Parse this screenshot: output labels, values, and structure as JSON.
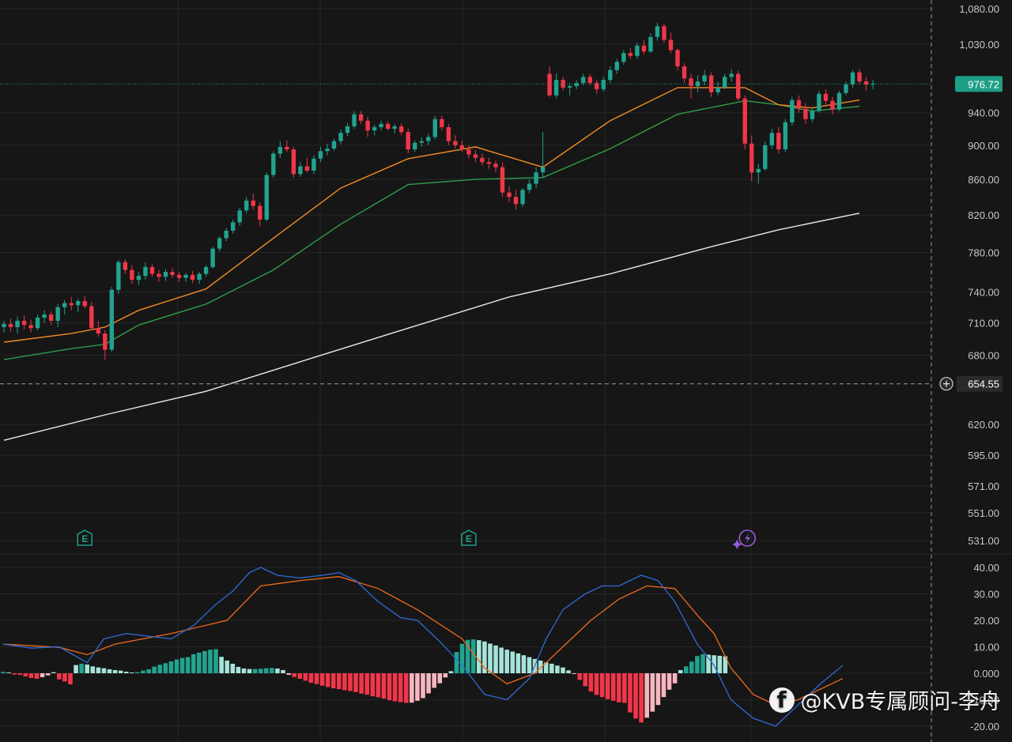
{
  "colors": {
    "background": "#161616",
    "grid": "#262626",
    "up": "#22a38f",
    "down": "#f2364a",
    "ma_orange": "#f28b22",
    "ma_green": "#2e9e4a",
    "ma_white": "#e9e9e9",
    "macd_blue": "#2f6bd6",
    "macd_orange": "#f06a1c",
    "hist_up_strong": "#22a38f",
    "hist_up_weak": "#a6e3d8",
    "hist_down_strong": "#f2364a",
    "hist_down_weak": "#f7b6c0",
    "price_tag": "#1f9e86",
    "crosshair_tag": "#2a2a2a",
    "earnings_icon": "#1f9e86",
    "flash_icon": "#9b59e0"
  },
  "price_axis_labels": [
    "1,080.00",
    "1,030.00",
    "976.72",
    "940.00",
    "900.00",
    "860.00",
    "820.00",
    "780.00",
    "740.00",
    "710.00",
    "680.00",
    "654.55",
    "620.00",
    "595.00",
    "571.00",
    "551.00",
    "531.00"
  ],
  "macd_axis_labels": [
    "40.00",
    "30.00",
    "20.00",
    "10.00",
    "0.000",
    "-10.00",
    "-20.00"
  ],
  "last_price": {
    "value": 976.72,
    "label": "976.72"
  },
  "crosshair": {
    "value": 654.55,
    "label": "654.55",
    "icon": "plus-circle-icon"
  },
  "markers": [
    {
      "type": "earnings",
      "label": "E",
      "icon": "earnings-icon",
      "bar_index": 12
    },
    {
      "type": "earnings",
      "label": "E",
      "icon": "earnings-icon",
      "bar_index": 69
    },
    {
      "type": "event",
      "label": "",
      "icon": "flash-icon",
      "bar_index": 110
    }
  ],
  "watermark": {
    "icon": "facebook-icon",
    "text": "@KVB专属顾问-李舟"
  },
  "chart_data": {
    "type": "candlestick",
    "price_scale": "log",
    "ylim": [
      531,
      1080
    ],
    "candles": [
      [
        706,
        712,
        701,
        709
      ],
      [
        709,
        714,
        702,
        706
      ],
      [
        706,
        716,
        700,
        712
      ],
      [
        712,
        717,
        704,
        708
      ],
      [
        708,
        713,
        701,
        705
      ],
      [
        705,
        718,
        703,
        715
      ],
      [
        715,
        722,
        710,
        718
      ],
      [
        718,
        721,
        708,
        712
      ],
      [
        712,
        728,
        706,
        725
      ],
      [
        725,
        732,
        718,
        729
      ],
      [
        729,
        735,
        722,
        727
      ],
      [
        727,
        733,
        720,
        731
      ],
      [
        731,
        736,
        724,
        726
      ],
      [
        726,
        730,
        703,
        705
      ],
      [
        705,
        712,
        697,
        700
      ],
      [
        700,
        703,
        676,
        685
      ],
      [
        685,
        745,
        683,
        742
      ],
      [
        742,
        772,
        738,
        770
      ],
      [
        770,
        773,
        758,
        762
      ],
      [
        762,
        767,
        748,
        752
      ],
      [
        752,
        760,
        747,
        756
      ],
      [
        756,
        770,
        752,
        765
      ],
      [
        765,
        768,
        755,
        758
      ],
      [
        758,
        762,
        750,
        755
      ],
      [
        755,
        763,
        751,
        760
      ],
      [
        760,
        764,
        754,
        757
      ],
      [
        757,
        760,
        750,
        754
      ],
      [
        754,
        759,
        750,
        757
      ],
      [
        757,
        761,
        749,
        752
      ],
      [
        752,
        760,
        748,
        758
      ],
      [
        758,
        767,
        755,
        765
      ],
      [
        765,
        786,
        763,
        784
      ],
      [
        784,
        797,
        781,
        795
      ],
      [
        795,
        806,
        792,
        803
      ],
      [
        803,
        815,
        800,
        812
      ],
      [
        812,
        828,
        808,
        825
      ],
      [
        825,
        840,
        822,
        836
      ],
      [
        836,
        844,
        826,
        830
      ],
      [
        830,
        834,
        808,
        815
      ],
      [
        815,
        868,
        813,
        865
      ],
      [
        865,
        893,
        862,
        890
      ],
      [
        890,
        905,
        885,
        898
      ],
      [
        898,
        906,
        892,
        895
      ],
      [
        895,
        898,
        862,
        866
      ],
      [
        866,
        880,
        863,
        875
      ],
      [
        875,
        885,
        868,
        870
      ],
      [
        870,
        888,
        866,
        884
      ],
      [
        884,
        898,
        880,
        893
      ],
      [
        893,
        902,
        888,
        896
      ],
      [
        896,
        908,
        893,
        905
      ],
      [
        905,
        919,
        901,
        915
      ],
      [
        915,
        927,
        911,
        923
      ],
      [
        923,
        942,
        920,
        938
      ],
      [
        938,
        942,
        926,
        930
      ],
      [
        930,
        935,
        910,
        918
      ],
      [
        918,
        925,
        912,
        922
      ],
      [
        922,
        930,
        918,
        926
      ],
      [
        926,
        929,
        918,
        920
      ],
      [
        920,
        926,
        914,
        923
      ],
      [
        923,
        927,
        912,
        916
      ],
      [
        916,
        920,
        890,
        895
      ],
      [
        895,
        906,
        892,
        903
      ],
      [
        903,
        910,
        898,
        905
      ],
      [
        905,
        914,
        900,
        910
      ],
      [
        910,
        936,
        907,
        932
      ],
      [
        932,
        936,
        918,
        922
      ],
      [
        922,
        926,
        900,
        905
      ],
      [
        905,
        912,
        896,
        900
      ],
      [
        900,
        906,
        892,
        895
      ],
      [
        895,
        900,
        884,
        889
      ],
      [
        889,
        894,
        880,
        885
      ],
      [
        885,
        890,
        876,
        880
      ],
      [
        880,
        885,
        872,
        878
      ],
      [
        878,
        882,
        868,
        874
      ],
      [
        874,
        880,
        840,
        845
      ],
      [
        845,
        852,
        834,
        840
      ],
      [
        840,
        848,
        826,
        832
      ],
      [
        832,
        850,
        829,
        848
      ],
      [
        848,
        860,
        844,
        855
      ],
      [
        855,
        874,
        850,
        868
      ],
      [
        868,
        916,
        862,
        874
      ],
      [
        990,
        1000,
        960,
        962
      ],
      [
        962,
        990,
        958,
        982
      ],
      [
        982,
        986,
        968,
        972
      ],
      [
        972,
        978,
        962,
        974
      ],
      [
        974,
        982,
        970,
        978
      ],
      [
        978,
        990,
        975,
        986
      ],
      [
        986,
        990,
        975,
        978
      ],
      [
        978,
        982,
        964,
        970
      ],
      [
        970,
        986,
        967,
        982
      ],
      [
        982,
        1000,
        978,
        995
      ],
      [
        995,
        1010,
        990,
        1006
      ],
      [
        1006,
        1022,
        1002,
        1018
      ],
      [
        1018,
        1025,
        1010,
        1014
      ],
      [
        1014,
        1032,
        1010,
        1028
      ],
      [
        1028,
        1036,
        1016,
        1020
      ],
      [
        1020,
        1045,
        1018,
        1040
      ],
      [
        1040,
        1060,
        1035,
        1055
      ],
      [
        1055,
        1058,
        1032,
        1036
      ],
      [
        1036,
        1046,
        1018,
        1022
      ],
      [
        1022,
        1024,
        995,
        1000
      ],
      [
        1000,
        1004,
        978,
        984
      ],
      [
        984,
        990,
        958,
        974
      ],
      [
        974,
        988,
        966,
        980
      ],
      [
        980,
        995,
        975,
        988
      ],
      [
        988,
        992,
        960,
        966
      ],
      [
        966,
        980,
        962,
        972
      ],
      [
        972,
        990,
        970,
        986
      ],
      [
        986,
        996,
        980,
        990
      ],
      [
        990,
        994,
        955,
        958
      ],
      [
        958,
        962,
        895,
        902
      ],
      [
        902,
        912,
        858,
        868
      ],
      [
        868,
        878,
        855,
        872
      ],
      [
        872,
        905,
        870,
        900
      ],
      [
        900,
        920,
        896,
        915
      ],
      [
        915,
        922,
        890,
        895
      ],
      [
        895,
        932,
        892,
        928
      ],
      [
        928,
        960,
        924,
        956
      ],
      [
        956,
        962,
        940,
        945
      ],
      [
        945,
        952,
        926,
        932
      ],
      [
        932,
        946,
        928,
        942
      ],
      [
        942,
        968,
        940,
        964
      ],
      [
        964,
        970,
        950,
        955
      ],
      [
        955,
        960,
        938,
        944
      ],
      [
        944,
        968,
        942,
        965
      ],
      [
        965,
        980,
        962,
        976
      ],
      [
        976,
        995,
        972,
        992
      ],
      [
        992,
        996,
        976,
        980
      ],
      [
        980,
        986,
        968,
        976
      ],
      [
        976,
        982,
        970,
        977
      ]
    ],
    "ma_orange": [
      [
        0,
        692
      ],
      [
        10,
        700
      ],
      [
        15,
        706
      ],
      [
        20,
        722
      ],
      [
        30,
        743
      ],
      [
        40,
        795
      ],
      [
        50,
        850
      ],
      [
        60,
        884
      ],
      [
        70,
        898
      ],
      [
        80,
        874
      ],
      [
        90,
        930
      ],
      [
        100,
        972
      ],
      [
        110,
        972
      ],
      [
        115,
        950
      ],
      [
        120,
        946
      ],
      [
        127,
        956
      ]
    ],
    "ma_green": [
      [
        0,
        676
      ],
      [
        10,
        686
      ],
      [
        15,
        690
      ],
      [
        20,
        708
      ],
      [
        30,
        728
      ],
      [
        40,
        762
      ],
      [
        50,
        810
      ],
      [
        60,
        854
      ],
      [
        70,
        860
      ],
      [
        80,
        862
      ],
      [
        90,
        896
      ],
      [
        100,
        938
      ],
      [
        110,
        955
      ],
      [
        115,
        950
      ],
      [
        120,
        942
      ],
      [
        127,
        948
      ]
    ],
    "ma_white": [
      [
        0,
        607
      ],
      [
        15,
        628
      ],
      [
        30,
        648
      ],
      [
        45,
        676
      ],
      [
        60,
        705
      ],
      [
        75,
        735
      ],
      [
        90,
        758
      ],
      [
        105,
        786
      ],
      [
        115,
        804
      ],
      [
        127,
        822
      ]
    ],
    "macd": {
      "ylim": [
        -22,
        42
      ],
      "dif": [
        [
          0,
          11
        ],
        [
          5,
          9.5
        ],
        [
          10,
          10
        ],
        [
          15,
          4
        ],
        [
          18,
          13
        ],
        [
          22,
          15
        ],
        [
          26,
          14
        ],
        [
          30,
          13
        ],
        [
          34,
          18
        ],
        [
          38,
          26
        ],
        [
          41,
          31
        ],
        [
          44,
          38
        ],
        [
          46,
          40
        ],
        [
          49,
          37
        ],
        [
          53,
          36
        ],
        [
          57,
          37
        ],
        [
          60,
          38
        ],
        [
          63,
          35
        ],
        [
          67,
          27
        ],
        [
          71,
          21
        ],
        [
          74,
          20
        ],
        [
          78,
          12
        ],
        [
          82,
          3
        ],
        [
          86,
          -8
        ],
        [
          90,
          -10
        ],
        [
          94,
          -2
        ],
        [
          97,
          13
        ],
        [
          100,
          24
        ],
        [
          104,
          30
        ],
        [
          107,
          33
        ],
        [
          110,
          33
        ],
        [
          114,
          37
        ],
        [
          117,
          35
        ],
        [
          120,
          27
        ],
        [
          124,
          11
        ],
        [
          127,
          3
        ],
        [
          130,
          -10
        ],
        [
          134,
          -17
        ],
        [
          138,
          -20
        ],
        [
          142,
          -12
        ],
        [
          146,
          -4
        ],
        [
          150,
          3
        ]
      ],
      "dea": [
        [
          0,
          11
        ],
        [
          10,
          9.8
        ],
        [
          15,
          7
        ],
        [
          20,
          11
        ],
        [
          30,
          15
        ],
        [
          40,
          20
        ],
        [
          46,
          33
        ],
        [
          53,
          35
        ],
        [
          60,
          36.5
        ],
        [
          67,
          32
        ],
        [
          74,
          24
        ],
        [
          82,
          13
        ],
        [
          86,
          2
        ],
        [
          90,
          -4
        ],
        [
          95,
          0
        ],
        [
          100,
          10
        ],
        [
          105,
          20
        ],
        [
          110,
          28
        ],
        [
          115,
          33
        ],
        [
          120,
          32
        ],
        [
          124,
          22
        ],
        [
          127,
          15
        ],
        [
          130,
          2
        ],
        [
          134,
          -8
        ],
        [
          138,
          -12
        ],
        [
          142,
          -10
        ],
        [
          146,
          -6
        ],
        [
          150,
          -2
        ]
      ],
      "hist": [
        0.5,
        0.3,
        -0.5,
        -0.6,
        -1.2,
        -1.8,
        -2.1,
        -1.5,
        -0.8,
        0.4,
        -2.3,
        -3.1,
        -4.2,
        3.1,
        3.6,
        3.3,
        2.6,
        2.2,
        1.9,
        1.5,
        1.2,
        1.0,
        0.6,
        0.3,
        0.4,
        1.0,
        1.5,
        2.5,
        3.2,
        3.8,
        4.5,
        5.2,
        5.8,
        6.1,
        7.2,
        7.8,
        8.4,
        8.9,
        9.1,
        6.2,
        4.8,
        3.6,
        2.4,
        1.8,
        1.6,
        1.6,
        1.7,
        1.9,
        2.0,
        1.8,
        1.2,
        -0.6,
        -1.4,
        -2.1,
        -2.8,
        -3.6,
        -4.1,
        -4.7,
        -5.2,
        -5.7,
        -6.0,
        -6.4,
        -6.7,
        -7.1,
        -7.7,
        -8.1,
        -8.7,
        -9.1,
        -9.6,
        -10.2,
        -10.6,
        -10.9,
        -11.2,
        -11.1,
        -10.4,
        -9.4,
        -7.6,
        -5.5,
        -3.8,
        -1.6,
        0.8,
        8.0,
        11.1,
        12.6,
        12.8,
        12.5,
        12.0,
        11.2,
        10.5,
        9.7,
        8.9,
        8.2,
        7.5,
        6.8,
        6.1,
        5.4,
        4.8,
        4.1,
        3.6,
        2.9,
        2.2,
        1.1,
        -0.3,
        -2.5,
        -4.9,
        -6.9,
        -8.2,
        -9.0,
        -9.8,
        -10.4,
        -11.0,
        -11.2,
        -14.8,
        -17.1,
        -18.6,
        -16.8,
        -14.5,
        -12.0,
        -9.0,
        -6.2,
        -3.8,
        1.2,
        2.6,
        4.4,
        6.5,
        7.2,
        7.0,
        6.8,
        6.6,
        6.4
      ]
    }
  }
}
